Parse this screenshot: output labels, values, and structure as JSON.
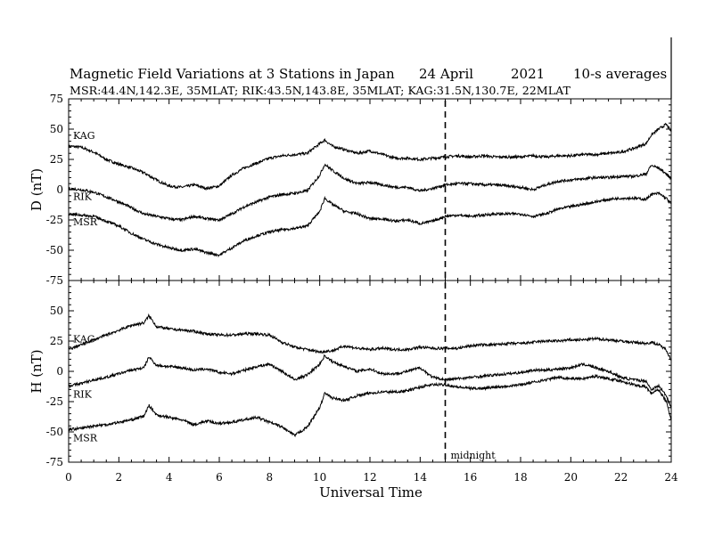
{
  "chart_data": {
    "type": "line",
    "title": "Magnetic Field Variations at 3 Stations in Japan",
    "date": "24 April",
    "year": "2021",
    "averaging": "10-s averages",
    "subtitle": "MSR:44.4N,142.3E, 35MLAT;  RIK:43.5N,143.8E, 35MLAT;  KAG:31.5N,130.7E, 22MLAT",
    "xlabel": "Universal Time",
    "xlim": [
      0,
      24
    ],
    "xticks": [
      "0",
      "2",
      "4",
      "6",
      "8",
      "10",
      "12",
      "14",
      "16",
      "18",
      "20",
      "22",
      "24"
    ],
    "grid": false,
    "annotation": {
      "text": "midnight",
      "x": 15
    },
    "panels": [
      {
        "component": "D",
        "ylabel": "D (nT)",
        "ylim": [
          -75,
          75
        ],
        "yticks": [
          "75",
          "50",
          "25",
          "0",
          "-25",
          "-50",
          "-75"
        ],
        "series": [
          {
            "name": "KAG",
            "x": [
              0,
              0.5,
              1,
              1.5,
              2,
              2.5,
              3,
              3.5,
              4,
              4.5,
              5,
              5.5,
              6,
              6.5,
              7,
              7.5,
              8,
              8.5,
              9,
              9.5,
              10,
              10.2,
              10.5,
              11,
              11.5,
              12,
              12.5,
              13,
              13.5,
              14,
              14.5,
              15,
              15.5,
              16,
              16.5,
              17,
              17.5,
              18,
              18.5,
              19,
              19.5,
              20,
              20.5,
              21,
              21.5,
              22,
              22.5,
              23,
              23.2,
              23.5,
              23.8,
              24
            ],
            "y": [
              36,
              35,
              31,
              25,
              21,
              18,
              14,
              8,
              3,
              2,
              4,
              1,
              3,
              12,
              18,
              22,
              26,
              28,
              29,
              30,
              38,
              41,
              36,
              33,
              30,
              32,
              29,
              26,
              26,
              25,
              26,
              27,
              28,
              27,
              28,
              27,
              27,
              27,
              28,
              27,
              28,
              28,
              29,
              29,
              30,
              31,
              34,
              38,
              45,
              50,
              54,
              48
            ]
          },
          {
            "name": "RIK",
            "x": [
              0,
              0.5,
              1,
              1.5,
              2,
              2.5,
              3,
              3.5,
              4,
              4.5,
              5,
              5.5,
              6,
              6.5,
              7,
              7.5,
              8,
              8.5,
              9,
              9.5,
              10,
              10.2,
              10.5,
              11,
              11.5,
              12,
              12.5,
              13,
              13.5,
              14,
              14.5,
              15,
              15.5,
              16,
              16.5,
              17,
              17.5,
              18,
              18.5,
              19,
              19.5,
              20,
              20.5,
              21,
              21.5,
              22,
              22.5,
              23,
              23.2,
              23.5,
              23.8,
              24
            ],
            "y": [
              1,
              0,
              -2,
              -6,
              -10,
              -15,
              -20,
              -22,
              -24,
              -25,
              -22,
              -24,
              -25,
              -20,
              -14,
              -10,
              -6,
              -4,
              -3,
              -1,
              12,
              21,
              16,
              9,
              5,
              6,
              4,
              2,
              2,
              -1,
              1,
              4,
              5,
              5,
              4,
              4,
              3,
              2,
              0,
              4,
              7,
              8,
              9,
              10,
              10,
              11,
              11,
              13,
              20,
              18,
              13,
              9
            ]
          },
          {
            "name": "MSR",
            "x": [
              0,
              0.5,
              1,
              1.5,
              2,
              2.5,
              3,
              3.5,
              4,
              4.5,
              5,
              5.5,
              6,
              6.5,
              7,
              7.5,
              8,
              8.5,
              9,
              9.5,
              10,
              10.2,
              10.5,
              11,
              11.5,
              12,
              12.5,
              13,
              13.5,
              14,
              14.5,
              15,
              15.5,
              16,
              16.5,
              17,
              17.5,
              18,
              18.5,
              19,
              19.5,
              20,
              20.5,
              21,
              21.5,
              22,
              22.5,
              23,
              23.2,
              23.5,
              23.8,
              24
            ],
            "y": [
              -20,
              -21,
              -22,
              -26,
              -30,
              -36,
              -41,
              -45,
              -48,
              -50,
              -49,
              -52,
              -54,
              -48,
              -42,
              -38,
              -35,
              -33,
              -32,
              -30,
              -18,
              -7,
              -12,
              -18,
              -20,
              -24,
              -24,
              -26,
              -25,
              -28,
              -26,
              -22,
              -21,
              -22,
              -21,
              -20,
              -20,
              -20,
              -22,
              -20,
              -16,
              -14,
              -12,
              -10,
              -8,
              -7,
              -7,
              -8,
              -4,
              -3,
              -7,
              -12
            ]
          }
        ]
      },
      {
        "component": "H",
        "ylabel": "H (nT)",
        "ylim": [
          -75,
          75
        ],
        "yticks": [
          "75",
          "50",
          "25",
          "0",
          "-25",
          "-50",
          "-75"
        ],
        "series": [
          {
            "name": "KAG",
            "x": [
              0,
              0.5,
              1,
              1.5,
              2,
              2.5,
              3,
              3.2,
              3.5,
              4,
              4.5,
              5,
              5.5,
              6,
              6.5,
              7,
              7.5,
              8,
              8.5,
              9,
              9.5,
              10,
              10.5,
              11,
              11.5,
              12,
              12.5,
              13,
              13.5,
              14,
              14.5,
              15,
              15.5,
              16,
              16.5,
              17,
              17.5,
              18,
              18.5,
              19,
              19.5,
              20,
              20.5,
              21,
              21.5,
              22,
              22.5,
              23,
              23.2,
              23.5,
              23.8,
              24
            ],
            "y": [
              18,
              22,
              26,
              30,
              34,
              38,
              40,
              46,
              37,
              35,
              34,
              33,
              31,
              30,
              30,
              31,
              31,
              30,
              24,
              20,
              18,
              16,
              17,
              21,
              19,
              18,
              19,
              18,
              18,
              20,
              19,
              19,
              19,
              21,
              22,
              22,
              23,
              23,
              24,
              25,
              25,
              26,
              26,
              27,
              26,
              25,
              24,
              23,
              24,
              22,
              18,
              9
            ]
          },
          {
            "name": "RIK",
            "x": [
              0,
              0.5,
              1,
              1.5,
              2,
              2.5,
              3,
              3.2,
              3.5,
              4,
              4.5,
              5,
              5.5,
              6,
              6.5,
              7,
              7.5,
              8,
              8.5,
              9,
              9.5,
              10,
              10.2,
              10.5,
              11,
              11.5,
              12,
              12.5,
              13,
              13.5,
              14,
              14.5,
              15,
              15.5,
              16,
              16.5,
              17,
              17.5,
              18,
              18.5,
              19,
              19.5,
              20,
              20.5,
              21,
              21.5,
              22,
              22.5,
              23,
              23.2,
              23.5,
              23.8,
              24
            ],
            "y": [
              -12,
              -10,
              -7,
              -5,
              -2,
              1,
              3,
              12,
              5,
              4,
              3,
              1,
              2,
              -1,
              -2,
              1,
              4,
              6,
              0,
              -7,
              -3,
              6,
              13,
              8,
              4,
              0,
              2,
              -2,
              -2,
              0,
              3,
              -5,
              -7,
              -6,
              -5,
              -4,
              -3,
              -2,
              -1,
              1,
              1,
              2,
              3,
              6,
              3,
              0,
              -5,
              -7,
              -8,
              -15,
              -12,
              -20,
              -30
            ]
          },
          {
            "name": "MSR",
            "x": [
              0,
              0.5,
              1,
              1.5,
              2,
              2.5,
              3,
              3.2,
              3.5,
              4,
              4.5,
              5,
              5.5,
              6,
              6.5,
              7,
              7.5,
              8,
              8.5,
              9,
              9.5,
              10,
              10.2,
              10.5,
              11,
              11.5,
              12,
              12.5,
              13,
              13.5,
              14,
              14.5,
              15,
              15.5,
              16,
              16.5,
              17,
              17.5,
              18,
              18.5,
              19,
              19.5,
              20,
              20.5,
              21,
              21.5,
              22,
              22.5,
              23,
              23.2,
              23.5,
              23.8,
              24
            ],
            "y": [
              -48,
              -47,
              -45,
              -44,
              -42,
              -40,
              -37,
              -28,
              -36,
              -38,
              -40,
              -44,
              -41,
              -43,
              -42,
              -40,
              -38,
              -42,
              -46,
              -53,
              -46,
              -30,
              -18,
              -22,
              -24,
              -20,
              -18,
              -17,
              -17,
              -16,
              -13,
              -11,
              -11,
              -13,
              -14,
              -14,
              -13,
              -12,
              -11,
              -9,
              -7,
              -5,
              -6,
              -6,
              -4,
              -6,
              -8,
              -11,
              -13,
              -18,
              -15,
              -25,
              -40
            ]
          }
        ]
      }
    ]
  }
}
